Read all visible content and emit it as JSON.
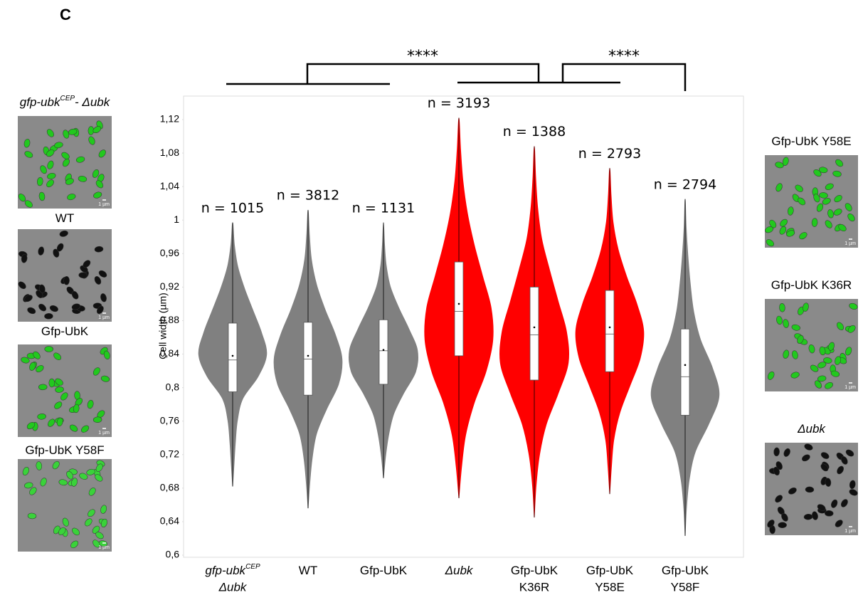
{
  "panel_label": "C",
  "chart_data": {
    "type": "violin",
    "y_label": "Cell width (µm)",
    "ylim": [
      0.6,
      1.12
    ],
    "yticks": [
      {
        "value": 0.6,
        "label": "0,6"
      },
      {
        "value": 0.64,
        "label": "0,64"
      },
      {
        "value": 0.68,
        "label": "0,68"
      },
      {
        "value": 0.72,
        "label": "0,72"
      },
      {
        "value": 0.76,
        "label": "0,76"
      },
      {
        "value": 0.8,
        "label": "0,8"
      },
      {
        "value": 0.84,
        "label": "0,84"
      },
      {
        "value": 0.88,
        "label": "0,88"
      },
      {
        "value": 0.92,
        "label": "0,92"
      },
      {
        "value": 0.96,
        "label": "0,96"
      },
      {
        "value": 1,
        "label": "1"
      },
      {
        "value": 1.04,
        "label": "1,04"
      },
      {
        "value": 1.08,
        "label": "1,08"
      },
      {
        "value": 1.12,
        "label": "1,12"
      }
    ],
    "categories": [
      {
        "label": "gfp-ubk",
        "sup": "CEP",
        "line2": "Δubk",
        "italic": true
      },
      {
        "label": "WT"
      },
      {
        "label": "Gfp-UbK"
      },
      {
        "label": "Δubk",
        "italic": true
      },
      {
        "label": "Gfp-UbK",
        "line2": "K36R"
      },
      {
        "label": "Gfp-UbK",
        "line2": "Y58E"
      },
      {
        "label": "Gfp-UbK",
        "line2": "Y58F"
      }
    ],
    "violins": [
      {
        "color": "#808080",
        "n_label": "n = 1015",
        "min": 0.682,
        "q1": 0.795,
        "median": 0.833,
        "mean": 0.838,
        "q3": 0.877,
        "max": 0.997,
        "density": [
          0,
          0.04,
          0.08,
          0.14,
          0.3,
          0.75,
          1,
          0.85,
          0.6,
          0.35,
          0.15,
          0.05,
          0
        ]
      },
      {
        "color": "#808080",
        "n_label": "n = 3812",
        "min": 0.656,
        "q1": 0.791,
        "median": 0.834,
        "mean": 0.838,
        "q3": 0.878,
        "max": 1.012,
        "density": [
          0,
          0.05,
          0.12,
          0.25,
          0.55,
          0.9,
          1,
          0.8,
          0.5,
          0.25,
          0.1,
          0.04,
          0
        ]
      },
      {
        "color": "#808080",
        "n_label": "n = 1131",
        "min": 0.692,
        "q1": 0.804,
        "median": 0.844,
        "mean": 0.845,
        "q3": 0.881,
        "max": 0.997,
        "density": [
          0,
          0.06,
          0.15,
          0.3,
          0.6,
          0.95,
          1,
          0.75,
          0.45,
          0.2,
          0.08,
          0.03,
          0
        ]
      },
      {
        "color": "#ff0000",
        "n_label": "n = 3193",
        "min": 0.668,
        "q1": 0.838,
        "median": 0.891,
        "mean": 0.9,
        "q3": 0.95,
        "max": 1.122,
        "density": [
          0,
          0.08,
          0.2,
          0.45,
          0.8,
          1,
          0.95,
          0.7,
          0.45,
          0.25,
          0.12,
          0.05,
          0
        ]
      },
      {
        "color": "#ff0000",
        "n_label": "n = 1388",
        "min": 0.645,
        "q1": 0.809,
        "median": 0.863,
        "mean": 0.872,
        "q3": 0.92,
        "max": 1.088,
        "density": [
          0,
          0.05,
          0.15,
          0.35,
          0.7,
          1,
          0.95,
          0.7,
          0.45,
          0.22,
          0.1,
          0.04,
          0
        ]
      },
      {
        "color": "#ff0000",
        "n_label": "n = 2793",
        "min": 0.673,
        "q1": 0.819,
        "median": 0.864,
        "mean": 0.872,
        "q3": 0.916,
        "max": 1.062,
        "density": [
          0,
          0.05,
          0.12,
          0.3,
          0.6,
          0.9,
          1,
          0.8,
          0.5,
          0.25,
          0.1,
          0.04,
          0
        ]
      },
      {
        "color": "#808080",
        "n_label": "n = 2794",
        "min": 0.623,
        "q1": 0.767,
        "median": 0.813,
        "mean": 0.827,
        "q3": 0.87,
        "max": 1.025,
        "density": [
          0,
          0.04,
          0.12,
          0.3,
          0.7,
          1,
          0.8,
          0.45,
          0.25,
          0.15,
          0.08,
          0.03,
          0
        ]
      }
    ],
    "significance": [
      "****",
      "****"
    ]
  },
  "scale_bar": "1 µm",
  "images_left": [
    {
      "label": "gfp-ubk",
      "sup": "CEP",
      "suffix": "- Δubk",
      "italic": true,
      "cells": "#22c81e"
    },
    {
      "label": "WT",
      "cells": "#111111"
    },
    {
      "label": "Gfp-UbK",
      "cells": "#22c81e"
    },
    {
      "label": "Gfp-UbK Y58F",
      "cells": "#3ad23a"
    }
  ],
  "images_right": [
    {
      "label": "Gfp-UbK Y58E",
      "cells": "#22c81e"
    },
    {
      "label": "Gfp-UbK K36R",
      "cells": "#22c81e"
    },
    {
      "label": "Δubk",
      "italic": true,
      "cells": "#111111"
    }
  ]
}
